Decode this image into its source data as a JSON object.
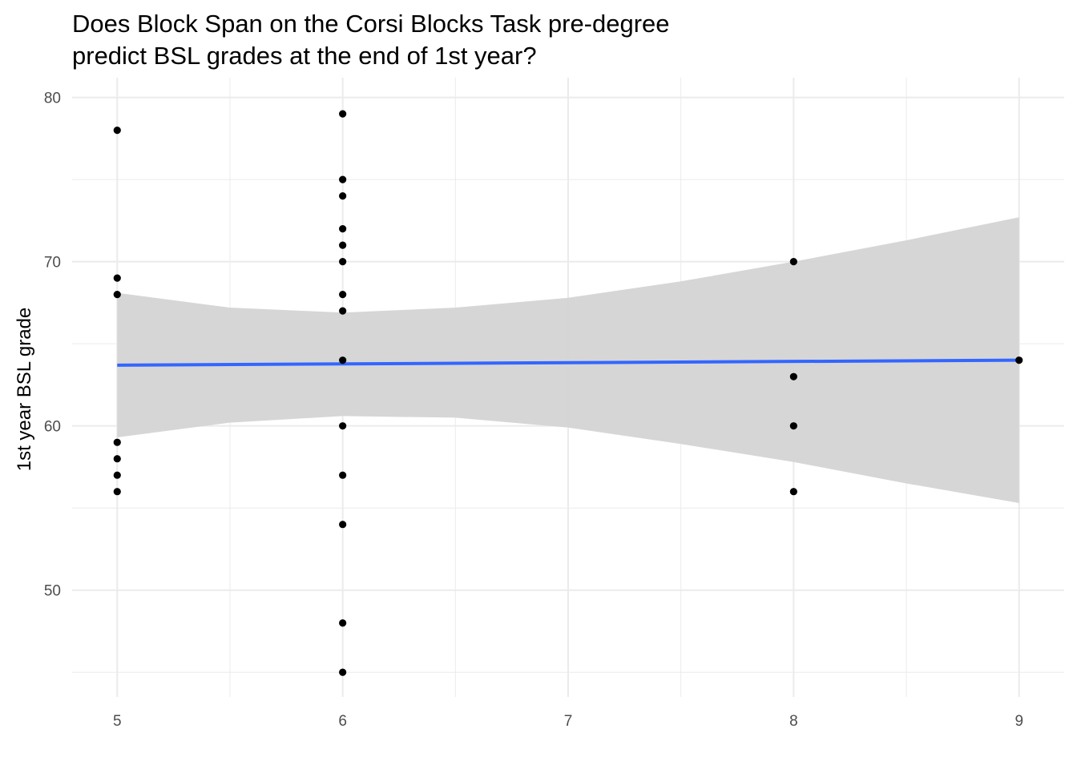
{
  "chart_data": {
    "type": "scatter",
    "title": "Does Block Span on the Corsi Blocks Task pre-degree predict BSL grades at the end of 1st year?",
    "title_lines": [
      "Does Block Span on the Corsi Blocks Task pre-degree",
      "predict BSL grades at the end of 1st year?"
    ],
    "xlabel": "",
    "ylabel": "1st year BSL grade",
    "xlim": [
      4.8,
      9.2
    ],
    "ylim": [
      43.5,
      81.2
    ],
    "x_ticks": [
      5,
      6,
      7,
      8,
      9
    ],
    "x_tick_labels": [
      "5",
      "6",
      "7",
      "8",
      "9"
    ],
    "y_ticks": [
      50,
      60,
      70,
      80
    ],
    "y_tick_labels": [
      "50",
      "60",
      "70",
      "80"
    ],
    "grid": true,
    "points": [
      {
        "x": 5,
        "y": 78
      },
      {
        "x": 5,
        "y": 69
      },
      {
        "x": 5,
        "y": 68
      },
      {
        "x": 5,
        "y": 59
      },
      {
        "x": 5,
        "y": 58
      },
      {
        "x": 5,
        "y": 57
      },
      {
        "x": 5,
        "y": 56
      },
      {
        "x": 6,
        "y": 79
      },
      {
        "x": 6,
        "y": 75
      },
      {
        "x": 6,
        "y": 74
      },
      {
        "x": 6,
        "y": 72
      },
      {
        "x": 6,
        "y": 71
      },
      {
        "x": 6,
        "y": 70
      },
      {
        "x": 6,
        "y": 68
      },
      {
        "x": 6,
        "y": 67
      },
      {
        "x": 6,
        "y": 64
      },
      {
        "x": 6,
        "y": 60
      },
      {
        "x": 6,
        "y": 57
      },
      {
        "x": 6,
        "y": 54
      },
      {
        "x": 6,
        "y": 48
      },
      {
        "x": 6,
        "y": 45
      },
      {
        "x": 8,
        "y": 70
      },
      {
        "x": 8,
        "y": 63
      },
      {
        "x": 8,
        "y": 60
      },
      {
        "x": 8,
        "y": 56
      },
      {
        "x": 9,
        "y": 64
      }
    ],
    "fit_line": {
      "x": [
        5,
        9
      ],
      "y": [
        63.7,
        64.0
      ],
      "color": "#3366ff"
    },
    "confidence_band": {
      "x": [
        5.0,
        5.5,
        6.0,
        6.5,
        7.0,
        7.5,
        8.0,
        8.5,
        9.0
      ],
      "lower": [
        59.3,
        60.2,
        60.6,
        60.5,
        59.9,
        58.9,
        57.8,
        56.5,
        55.3
      ],
      "upper": [
        68.1,
        67.2,
        66.9,
        67.2,
        67.8,
        68.8,
        70.0,
        71.3,
        72.7
      ],
      "color": "#d4d4d4"
    },
    "point_color": "#000000",
    "grid_color": "#ebebeb"
  }
}
